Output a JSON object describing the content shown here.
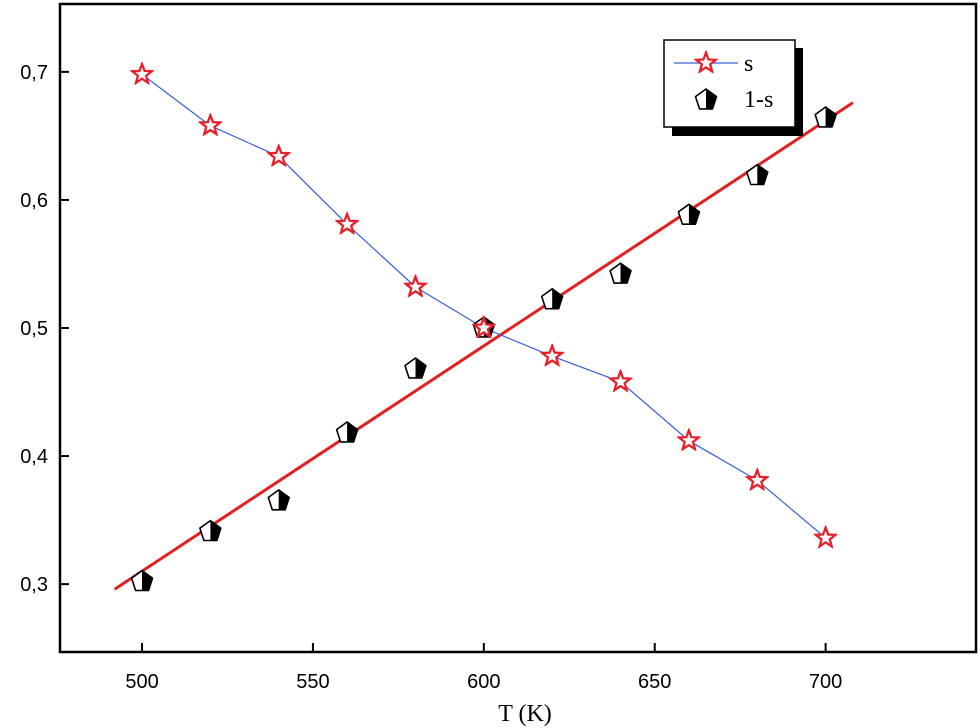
{
  "chart_data": {
    "type": "scatter",
    "xlabel": "T (K)",
    "ylabel": "",
    "xlim": [
      476,
      744
    ],
    "ylim": [
      0.247,
      0.753
    ],
    "xticks": [
      500,
      550,
      600,
      650,
      700
    ],
    "xtick_labels": [
      "500",
      "550",
      "600",
      "650",
      "700"
    ],
    "yticks": [
      0.3,
      0.4,
      0.5,
      0.6,
      0.7
    ],
    "ytick_labels": [
      "0,3",
      "0,4",
      "0,5",
      "0,6",
      "0,7"
    ],
    "grid": false,
    "legend_position": "top-right",
    "series": [
      {
        "name": "s",
        "marker": "star",
        "line": true,
        "color": "#e8202a",
        "line_color": "#3a5fd8",
        "x": [
          500,
          520,
          540,
          560,
          580,
          600,
          620,
          640,
          660,
          680,
          700
        ],
        "y": [
          0.698,
          0.658,
          0.634,
          0.581,
          0.532,
          0.5,
          0.478,
          0.458,
          0.412,
          0.381,
          0.336
        ]
      },
      {
        "name": "1-s",
        "marker": "pentagon-half",
        "line": false,
        "color": "#000000",
        "x": [
          500,
          520,
          540,
          560,
          580,
          600,
          620,
          640,
          660,
          680,
          700
        ],
        "y": [
          0.302,
          0.341,
          0.365,
          0.418,
          0.468,
          0.5,
          0.522,
          0.542,
          0.588,
          0.619,
          0.664
        ]
      }
    ],
    "fit_line": {
      "color": "#e32020",
      "x": [
        492,
        708
      ],
      "y": [
        0.296,
        0.676
      ]
    }
  }
}
